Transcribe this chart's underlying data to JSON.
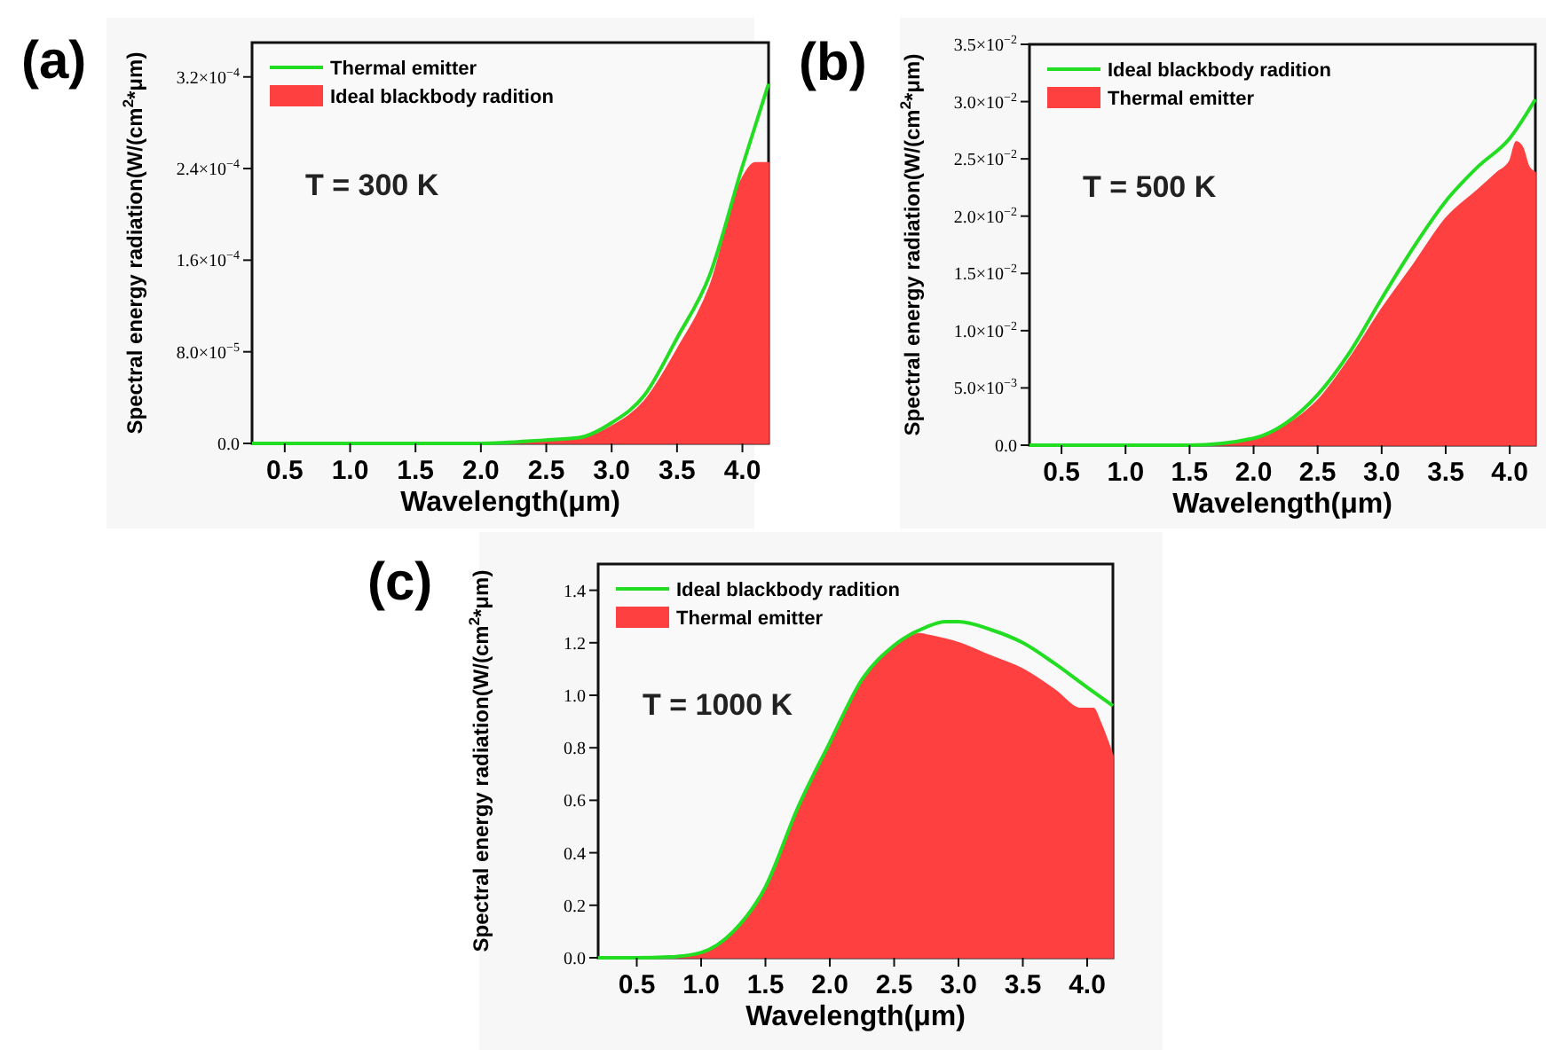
{
  "chart_data": [
    {
      "type": "area",
      "annotations": [
        "(a)",
        "T = 300 K"
      ],
      "xlabel": "Wavelength(μm)",
      "ylabel": "Spectral energy radiation(W/(cm$^{2}$*μm)",
      "xlim": [
        0.25,
        4.2
      ],
      "xticks": [
        0.5,
        {
          "value": 1,
          "label": "1.0"
        },
        1.5,
        {
          "value": 2,
          "label": "2.0"
        },
        2.5,
        {
          "value": 3,
          "label": "3.0"
        },
        3.5,
        {
          "value": 4,
          "label": "4.0"
        }
      ],
      "ylim": [
        0,
        0.00035
      ],
      "yticks": [
        {
          "value": 0,
          "label": "0.0"
        },
        {
          "value": 8e-05,
          "label": "8.0×10$^{−5}$"
        },
        {
          "value": 0.00016,
          "label": "1.6×10$^{−4}$"
        },
        {
          "value": 0.00024,
          "label": "2.4×10$^{−4}$"
        },
        {
          "value": 0.00032,
          "label": "3.2×10$^{−4}$"
        }
      ],
      "grid": false,
      "legend": "top left",
      "series": [
        {
          "name": "Thermal emitter",
          "type": "line",
          "color": "#22dd22",
          "x": [
            0.25,
            1.0,
            2.0,
            2.5,
            2.75,
            3.0,
            3.25,
            3.5,
            3.75,
            4.0,
            4.2
          ],
          "values": [
            0,
            0,
            0,
            3e-06,
            5e-06,
            1.8e-05,
            4.2e-05,
            9.2e-05,
            0.000147,
            0.000242,
            0.000314
          ]
        },
        {
          "name": "Ideal blackbody radition",
          "color": "#ff4040",
          "x": [
            0.25,
            1.0,
            2.0,
            2.5,
            2.75,
            3.0,
            3.25,
            3.5,
            3.75,
            4.0,
            4.1,
            4.2
          ],
          "values": [
            0,
            0,
            0,
            2e-06,
            4e-06,
            1.5e-05,
            3.7e-05,
            8.2e-05,
            0.000137,
            0.000232,
            0.000245,
            0.000245
          ]
        }
      ]
    },
    {
      "type": "area",
      "annotations": [
        "(b)",
        "T = 500 K"
      ],
      "xlabel": "Wavelength(μm)",
      "ylabel": "Spectral energy radiation(W/(cm$^{2}$*μm)",
      "xlim": [
        0.25,
        4.2
      ],
      "xticks": [
        0.5,
        {
          "value": 1,
          "label": "1.0"
        },
        1.5,
        {
          "value": 2,
          "label": "2.0"
        },
        2.5,
        {
          "value": 3,
          "label": "3.0"
        },
        3.5,
        {
          "value": 4,
          "label": "4.0"
        }
      ],
      "ylim": [
        0,
        0.035
      ],
      "yticks": [
        {
          "value": 0,
          "label": "0.0"
        },
        {
          "value": 0.005,
          "label": "5.0×10$^{−3}$"
        },
        {
          "value": 0.01,
          "label": "1.0×10$^{−2}$"
        },
        {
          "value": 0.015,
          "label": "1.5×10$^{−2}$"
        },
        {
          "value": 0.02,
          "label": "2.0×10$^{−2}$"
        },
        {
          "value": 0.025,
          "label": "2.5×10$^{−2}$"
        },
        {
          "value": 0.03,
          "label": "3.0×10$^{−2}$"
        },
        {
          "value": 0.035,
          "label": "3.5×10$^{−2}$"
        }
      ],
      "grid": false,
      "legend": "top left",
      "series": [
        {
          "name": "Ideal blackbody radition",
          "type": "line",
          "color": "#22dd22",
          "x": [
            0.25,
            1.0,
            1.5,
            2.0,
            2.25,
            2.5,
            2.75,
            3.0,
            3.25,
            3.5,
            3.75,
            4.0,
            4.2
          ],
          "values": [
            0,
            0,
            0,
            0.0006,
            0.0019,
            0.0044,
            0.0081,
            0.0128,
            0.0173,
            0.0213,
            0.0243,
            0.0268,
            0.0302
          ]
        },
        {
          "name": "Thermal emitter",
          "color": "#ff4040",
          "x": [
            0.25,
            1.0,
            1.5,
            2.0,
            2.25,
            2.5,
            2.75,
            3.0,
            3.25,
            3.5,
            3.75,
            3.9,
            4.0,
            4.05,
            4.1,
            4.15,
            4.2
          ],
          "values": [
            0,
            0,
            0,
            0.0005,
            0.0017,
            0.0039,
            0.0076,
            0.0119,
            0.0158,
            0.0198,
            0.0223,
            0.0238,
            0.0248,
            0.0265,
            0.026,
            0.0243,
            0.0238
          ]
        }
      ]
    },
    {
      "type": "area",
      "annotations": [
        "(c)",
        "T = 1000 K"
      ],
      "xlabel": "Wavelength(μm)",
      "ylabel": "Spectral energy radiation(W/(cm$^{2}$*μm)",
      "xlim": [
        0.2,
        4.2
      ],
      "xticks": [
        0.5,
        {
          "value": 1,
          "label": "1.0"
        },
        1.5,
        {
          "value": 2,
          "label": "2.0"
        },
        2.5,
        {
          "value": 3,
          "label": "3.0"
        },
        3.5,
        {
          "value": 4,
          "label": "4.0"
        }
      ],
      "ylim": [
        0,
        1.5
      ],
      "yticks": [
        {
          "value": 0,
          "label": "0.0"
        },
        0.2,
        0.4,
        0.6,
        0.8,
        {
          "value": 1,
          "label": "1.0"
        },
        1.2,
        1.4
      ],
      "grid": false,
      "legend": "top left",
      "series": [
        {
          "name": "Ideal blackbody radition",
          "type": "line",
          "color": "#22dd22",
          "x": [
            0.2,
            0.5,
            0.75,
            1.0,
            1.25,
            1.5,
            1.75,
            2.0,
            2.25,
            2.5,
            2.75,
            2.9,
            3.0,
            3.25,
            3.5,
            3.75,
            4.0,
            4.2
          ],
          "values": [
            0,
            0,
            0.003,
            0.02,
            0.1,
            0.27,
            0.57,
            0.82,
            1.06,
            1.19,
            1.26,
            1.28,
            1.28,
            1.25,
            1.2,
            1.12,
            1.03,
            0.96
          ]
        },
        {
          "name": "Thermal emitter",
          "color": "#ff4040",
          "x": [
            0.2,
            0.5,
            0.75,
            1.0,
            1.25,
            1.5,
            1.75,
            2.0,
            2.25,
            2.5,
            2.7,
            2.75,
            3.0,
            3.25,
            3.5,
            3.75,
            3.95,
            4.05,
            4.1,
            4.2
          ],
          "values": [
            0,
            0,
            0.003,
            0.02,
            0.1,
            0.27,
            0.57,
            0.82,
            1.06,
            1.18,
            1.235,
            1.23,
            1.2,
            1.15,
            1.1,
            1.02,
            0.95,
            0.95,
            0.9,
            0.77
          ]
        }
      ]
    }
  ]
}
